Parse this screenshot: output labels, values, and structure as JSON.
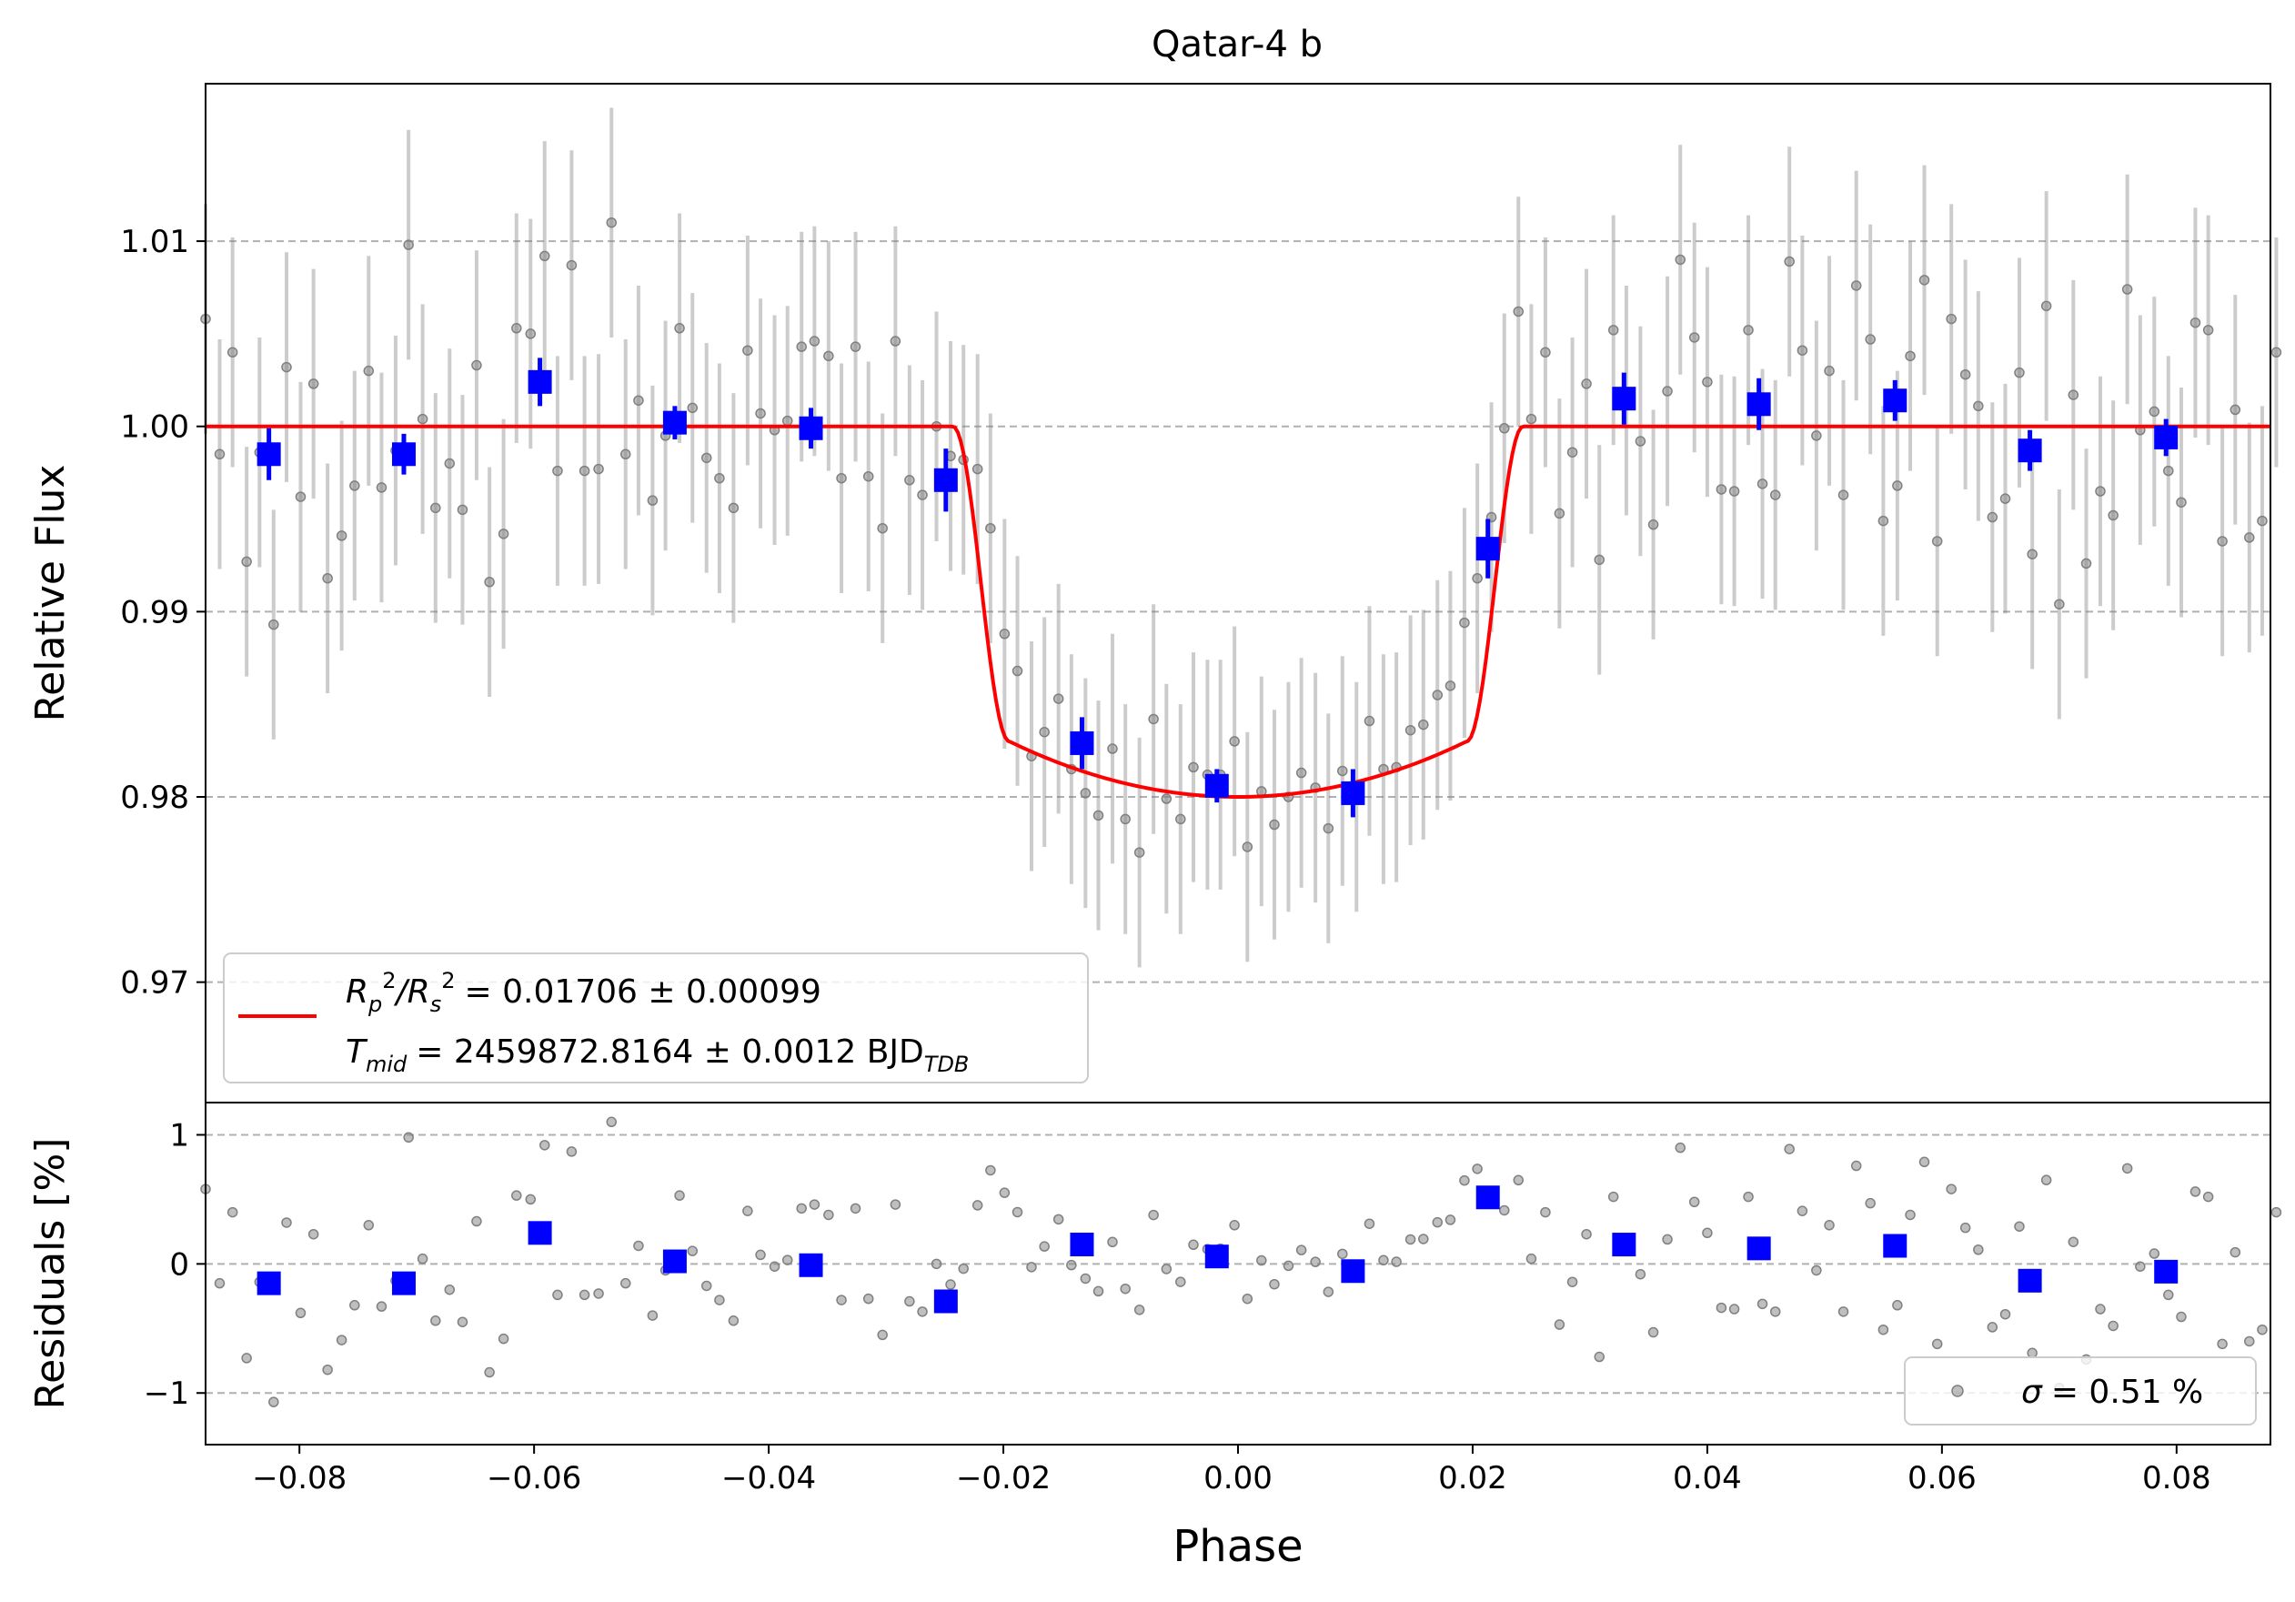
{
  "chart_data": [
    {
      "panel": "main",
      "type": "scatter",
      "title": "Qatar-4 b",
      "xlabel": "",
      "ylabel": "Relative Flux",
      "xlim": [
        -0.088,
        0.088
      ],
      "ylim": [
        0.9635,
        1.0185
      ],
      "yticks": [
        0.97,
        0.98,
        0.99,
        1.0,
        1.01
      ],
      "ytick_labels": [
        "0.97",
        "0.98",
        "0.99",
        "1.00",
        "1.01"
      ],
      "grid": "horizontal dashed",
      "legend_position": "lower-left",
      "legend": {
        "line1": "= 0.01706 ± 0.00099",
        "line1_label_main": "R",
        "line1_label_sub1": "p",
        "line1_label_sup1": "2",
        "line1_label_sep": "/R",
        "line1_label_sub2": "s",
        "line1_label_sup2": "2",
        "line2_label_main": "T",
        "line2_label_sub": "mid",
        "line2": "= 2459872.8164 ± 0.0012 BJD",
        "line2_sub": "TDB"
      },
      "model": {
        "color": "#ff0000",
        "depth": 0.02,
        "t14_half": 0.0243,
        "t23_half": 0.0195
      },
      "binned": {
        "color": "#0000ff",
        "x": [
          -0.0826,
          -0.0711,
          -0.0595,
          -0.048,
          -0.0364,
          -0.0249,
          -0.0133,
          -0.0018,
          0.0098,
          0.0213,
          0.0329,
          0.0444,
          0.056,
          0.0675,
          0.0791
        ],
        "y": [
          0.9985,
          0.9985,
          1.0024,
          1.0002,
          0.9999,
          0.9971,
          0.9829,
          0.9806,
          0.9802,
          0.9934,
          1.0015,
          1.0012,
          1.0014,
          0.9987,
          0.9994
        ],
        "err": [
          0.0014,
          0.0011,
          0.0013,
          0.0009,
          0.0011,
          0.0017,
          0.0014,
          0.0009,
          0.0013,
          0.0016,
          0.0014,
          0.0014,
          0.0011,
          0.0011,
          0.001
        ]
      },
      "raw": {
        "color": "#808080",
        "error_bar": 0.0062,
        "x": [
          -0.088,
          -0.0868,
          -0.0857,
          -0.0845,
          -0.0834,
          -0.0822,
          -0.0811,
          -0.0799,
          -0.0788,
          -0.0776,
          -0.0764,
          -0.0753,
          -0.0741,
          -0.073,
          -0.0718,
          -0.0707,
          -0.0695,
          -0.0684,
          -0.0672,
          -0.0661,
          -0.0649,
          -0.0638,
          -0.0626,
          -0.0615,
          -0.0603,
          -0.0591,
          -0.058,
          -0.0568,
          -0.0557,
          -0.0545,
          -0.0534,
          -0.0522,
          -0.0511,
          -0.0499,
          -0.0488,
          -0.0476,
          -0.0465,
          -0.0453,
          -0.0442,
          -0.043,
          -0.0418,
          -0.0407,
          -0.0395,
          -0.0384,
          -0.0372,
          -0.0361,
          -0.0349,
          -0.0338,
          -0.0326,
          -0.0315,
          -0.0303,
          -0.0292,
          -0.028,
          -0.0269,
          -0.0257,
          -0.0245,
          -0.0234,
          -0.0222,
          -0.0211,
          -0.0199,
          -0.0188,
          -0.0176,
          -0.0165,
          -0.0153,
          -0.0142,
          -0.013,
          -0.0119,
          -0.0107,
          -0.0096,
          -0.0084,
          -0.0072,
          -0.0061,
          -0.0049,
          -0.0038,
          -0.0026,
          -0.0015,
          -0.0003,
          0.0008,
          0.002,
          0.0031,
          0.0043,
          0.0054,
          0.0066,
          0.0077,
          0.0089,
          0.0101,
          0.0112,
          0.0124,
          0.0135,
          0.0147,
          0.0158,
          0.017,
          0.0181,
          0.0193,
          0.0204,
          0.0216,
          0.0227,
          0.0239,
          0.025,
          0.0262,
          0.0274,
          0.0285,
          0.0297,
          0.0308,
          0.032,
          0.0331,
          0.0343,
          0.0354,
          0.0366,
          0.0377,
          0.0389,
          0.04,
          0.0412,
          0.0423,
          0.0435,
          0.0447,
          0.0458,
          0.047,
          0.0481,
          0.0493,
          0.0504,
          0.0516,
          0.0527,
          0.0539,
          0.055,
          0.0562,
          0.0573,
          0.0585,
          0.0596,
          0.0608,
          0.062,
          0.0631,
          0.0643,
          0.0654,
          0.0666,
          0.0677,
          0.0689,
          0.07,
          0.0712,
          0.0723,
          0.0735,
          0.0746,
          0.0758,
          0.0769,
          0.0781,
          0.0793,
          0.0804,
          0.0816,
          0.0827,
          0.0839,
          0.085,
          0.0862,
          0.0873,
          0.0885
        ],
        "y": [
          1.0058,
          0.9985,
          1.004,
          0.9927,
          0.9986,
          0.9893,
          1.0032,
          0.9962,
          1.0023,
          0.9918,
          0.9941,
          0.9968,
          1.003,
          0.9967,
          0.9987,
          1.0098,
          1.0004,
          0.9956,
          0.998,
          0.9955,
          1.0033,
          0.9916,
          0.9942,
          1.0053,
          1.005,
          1.0092,
          0.9976,
          1.0087,
          0.9976,
          0.9977,
          1.011,
          0.9985,
          1.0014,
          0.996,
          0.9995,
          1.0053,
          1.001,
          0.9983,
          0.9972,
          0.9956,
          1.0041,
          1.0007,
          0.9998,
          1.0003,
          1.0043,
          1.0046,
          1.0038,
          0.9972,
          1.0043,
          0.9973,
          0.9945,
          1.0046,
          0.9971,
          0.9963,
          1.0,
          0.9984,
          0.9982,
          0.9977,
          0.9945,
          0.9888,
          0.9868,
          0.9822,
          0.9835,
          0.9853,
          0.9815,
          0.9802,
          0.979,
          0.9826,
          0.9788,
          0.977,
          0.9842,
          0.9799,
          0.9788,
          0.9816,
          0.9812,
          0.9812,
          0.983,
          0.9773,
          0.9803,
          0.9785,
          0.98,
          0.9813,
          0.9805,
          0.9783,
          0.9814,
          0.98,
          0.9841,
          0.9815,
          0.9816,
          0.9836,
          0.9839,
          0.9855,
          0.986,
          0.9894,
          0.9918,
          0.9951,
          0.9999,
          1.0062,
          1.0004,
          1.004,
          0.9953,
          0.9986,
          1.0023,
          0.9928,
          1.0052,
          1.0014,
          0.9992,
          0.9947,
          1.0019,
          1.009,
          1.0048,
          1.0024,
          0.9966,
          0.9965,
          1.0052,
          0.9969,
          0.9963,
          1.0089,
          1.0041,
          0.9995,
          1.003,
          0.9963,
          1.0076,
          1.0047,
          0.9949,
          0.9968,
          1.0038,
          1.0079,
          0.9938,
          1.0058,
          1.0028,
          1.0011,
          0.9951,
          0.9961,
          1.0029,
          0.9931,
          1.0065,
          0.9904,
          1.0017,
          0.9926,
          0.9965,
          0.9952,
          1.0074,
          0.9998,
          1.0008,
          0.9976,
          0.9959,
          1.0056,
          1.0052,
          0.9938,
          1.0009,
          0.994,
          0.9949,
          1.004
        ]
      }
    },
    {
      "panel": "residuals",
      "type": "scatter",
      "xlabel": "Phase",
      "ylabel": "Residuals [%]",
      "xlim": [
        -0.088,
        0.088
      ],
      "ylim": [
        -1.4,
        1.25
      ],
      "xticks": [
        -0.08,
        -0.06,
        -0.04,
        -0.02,
        0.0,
        0.02,
        0.04,
        0.06,
        0.08
      ],
      "xtick_labels": [
        "−0.08",
        "−0.06",
        "−0.04",
        "−0.02",
        "0.00",
        "0.02",
        "0.04",
        "0.06",
        "0.08"
      ],
      "yticks": [
        -1,
        0,
        1
      ],
      "ytick_labels": [
        "−1",
        "0",
        "1"
      ],
      "grid": "horizontal dashed",
      "legend_position": "lower-right",
      "legend": {
        "sigma_symbol": "σ",
        "text": "= 0.51 %"
      },
      "binned_color": "#0000ff",
      "raw_color": "#808080"
    }
  ]
}
